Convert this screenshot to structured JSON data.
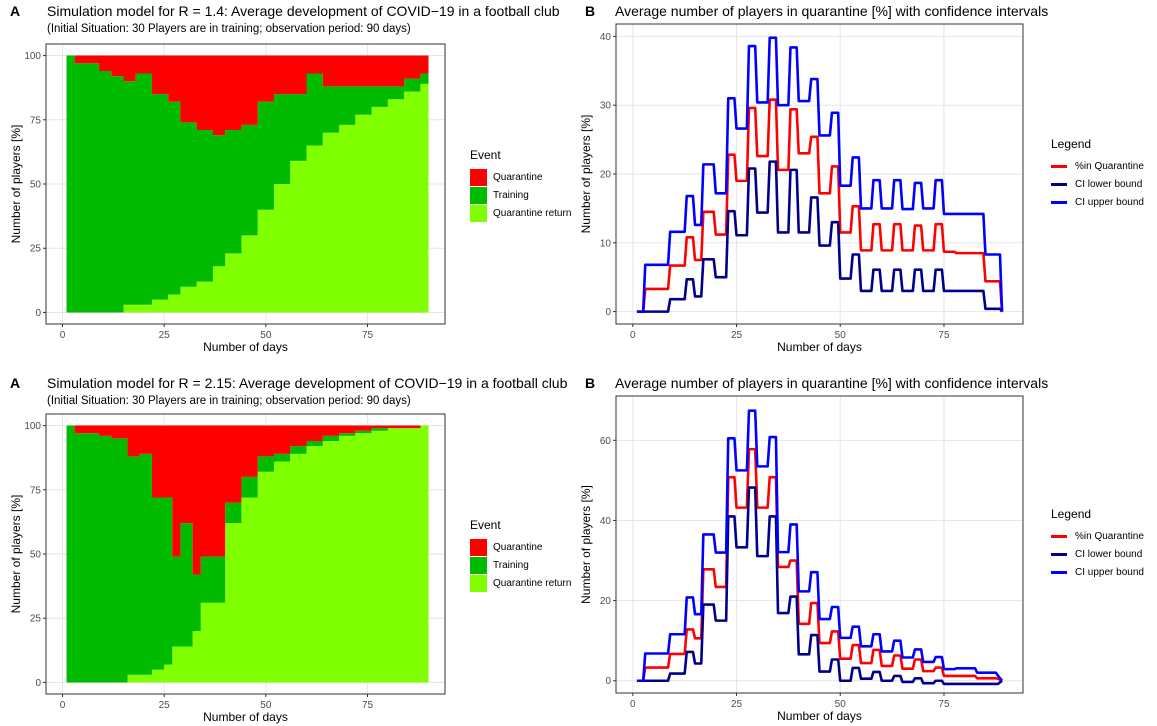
{
  "colors": {
    "quarantine": "#FF0000",
    "training": "#00BB00",
    "quarantine_return": "#7FFF00",
    "quarantine_line": "#FF0000",
    "ci_lower": "#00008B",
    "ci_upper": "#0000FF",
    "grid": "#E5E5E5",
    "axis": "#333333"
  },
  "panels": [
    {
      "letter": "A",
      "title": "Simulation model for R = 1.4: Average development of COVID−19 in a football club",
      "subtitle": "(Initial Situation: 30 Players are in training; observation period: 90 days)",
      "xlabel": "Number of days",
      "ylabel": "Number of players [%]",
      "legend": {
        "title": "Event",
        "items": [
          "Quarantine",
          "Training",
          "Quarantine return"
        ]
      }
    },
    {
      "letter": "B",
      "title": "Average number of players in quarantine [%] with confidence intervals",
      "xlabel": "Number of days",
      "ylabel": "Number of players [%]",
      "legend": {
        "title": "Legend",
        "items": [
          "%in Quarantine",
          "CI lower bound",
          "CI upper bound"
        ]
      }
    },
    {
      "letter": "A",
      "title": "Simulation model for R = 2.15: Average development of COVID−19 in a football club",
      "subtitle": "(Initial Situation: 30 Players are in training; observation period: 90 days)",
      "xlabel": "Number of days",
      "ylabel": "Number of players [%]",
      "legend": {
        "title": "Event",
        "items": [
          "Quarantine",
          "Training",
          "Quarantine return"
        ]
      }
    },
    {
      "letter": "B",
      "title": "Average number of players in quarantine [%] with confidence intervals",
      "xlabel": "Number of days",
      "ylabel": "Number of players [%]",
      "legend": {
        "title": "Legend",
        "items": [
          "%in Quarantine",
          "CI lower bound",
          "CI upper bound"
        ]
      }
    }
  ],
  "chart_data": [
    {
      "type": "area",
      "stacked": true,
      "xlim": [
        0,
        90
      ],
      "ylim": [
        0,
        100
      ],
      "xticks": [
        0,
        25,
        50,
        75
      ],
      "yticks": [
        0,
        25,
        50,
        75,
        100
      ],
      "grid": true,
      "legend_position": "right",
      "x": [
        1,
        3,
        9,
        12,
        15,
        18,
        22,
        26,
        29,
        33,
        37,
        40,
        44,
        48,
        52,
        56,
        60,
        64,
        68,
        72,
        76,
        80,
        84,
        88,
        90
      ],
      "series": [
        {
          "name": "Quarantine return",
          "values": [
            0,
            0,
            0,
            0,
            3,
            3,
            5,
            7,
            10,
            12,
            18,
            23,
            30,
            40,
            50,
            59,
            65,
            70,
            73,
            77,
            80,
            83,
            86,
            89,
            89
          ]
        },
        {
          "name": "Training",
          "values": [
            100,
            97,
            94,
            92,
            87,
            90,
            80,
            75,
            64,
            59,
            51,
            48,
            43,
            42,
            35,
            26,
            28,
            18,
            15,
            11,
            8,
            5,
            5,
            4,
            9
          ]
        },
        {
          "name": "Quarantine",
          "values": [
            0,
            3,
            6,
            8,
            10,
            7,
            15,
            18,
            26,
            29,
            31,
            29,
            27,
            18,
            15,
            15,
            7,
            12,
            12,
            12,
            12,
            12,
            9,
            7,
            2
          ]
        }
      ]
    },
    {
      "type": "line",
      "xlim": [
        0,
        90
      ],
      "ylim": [
        0,
        40
      ],
      "xticks": [
        0,
        25,
        50,
        75
      ],
      "yticks": [
        0,
        10,
        20,
        30,
        40
      ],
      "grid": true,
      "legend_position": "right",
      "x": [
        1,
        2.5,
        3,
        8.5,
        9,
        12.5,
        13,
        14.5,
        15,
        16.5,
        17,
        19.5,
        20,
        22.5,
        23,
        24.5,
        25,
        27.5,
        28,
        29.5,
        30,
        32.5,
        33,
        34.5,
        35,
        37.5,
        38,
        39.5,
        40,
        42.5,
        43,
        44.5,
        45,
        47.5,
        48,
        49.5,
        50,
        52.5,
        53,
        54.5,
        55,
        57.5,
        58,
        59.5,
        60,
        62.5,
        63,
        64.5,
        65,
        67.5,
        68,
        69.5,
        70,
        72.5,
        73,
        74.5,
        75,
        77.5,
        78,
        84.5,
        85,
        88.5,
        89
      ],
      "series": [
        {
          "name": "%in Quarantine",
          "values": [
            0,
            0,
            3.3,
            3.3,
            6.7,
            6.7,
            10.8,
            10.8,
            7.5,
            7.5,
            14.5,
            14.5,
            11.2,
            11.2,
            22.8,
            22.8,
            19,
            19,
            29.6,
            29.6,
            22.6,
            22.6,
            30.8,
            30.8,
            20.6,
            20.6,
            29.4,
            29.4,
            23,
            23,
            25.4,
            25.4,
            17.2,
            17.2,
            21.1,
            21.1,
            11.5,
            11.5,
            15.3,
            15.3,
            8.9,
            8.9,
            12.7,
            12.7,
            8.9,
            8.9,
            12.7,
            12.7,
            8.9,
            8.9,
            12.5,
            12.5,
            8.9,
            8.9,
            12.7,
            12.7,
            8.7,
            8.7,
            8.5,
            8.5,
            4.4,
            4.4,
            0
          ]
        },
        {
          "name": "CI lower bound",
          "values": [
            0,
            0,
            0,
            0,
            1.8,
            1.8,
            4.7,
            4.7,
            2.2,
            2.2,
            7.6,
            7.6,
            5,
            5,
            14.6,
            14.6,
            11.1,
            11.1,
            20.8,
            20.8,
            14.4,
            14.4,
            21.8,
            21.8,
            11.5,
            11.5,
            20.6,
            20.6,
            11.5,
            11.5,
            16.6,
            16.6,
            9.6,
            9.6,
            13,
            13,
            4.8,
            4.8,
            8.3,
            8.3,
            3,
            3,
            6.1,
            6.1,
            3,
            3,
            6.1,
            6.1,
            3,
            3,
            6.1,
            6.1,
            3,
            3,
            6.1,
            6.1,
            3,
            3,
            3,
            3,
            0.4,
            0.4,
            0
          ]
        },
        {
          "name": "CI upper bound",
          "values": [
            0,
            0,
            6.8,
            6.8,
            11.6,
            11.6,
            16.8,
            16.8,
            12.6,
            12.6,
            21.4,
            21.4,
            17.2,
            17.2,
            31,
            31,
            26.6,
            26.6,
            38.6,
            38.6,
            30.4,
            30.4,
            39.8,
            39.8,
            30,
            30,
            38.4,
            38.4,
            30.6,
            30.6,
            33.8,
            33.8,
            25.6,
            25.6,
            28.9,
            28.9,
            18.3,
            18.3,
            22.4,
            22.4,
            15,
            15,
            19.1,
            19.1,
            15,
            15,
            19.1,
            19.1,
            14.9,
            14.9,
            18.7,
            18.7,
            15,
            15,
            19.1,
            19.1,
            14.2,
            14.2,
            14.2,
            14.2,
            8.3,
            8.3,
            0
          ]
        }
      ]
    },
    {
      "type": "area",
      "stacked": true,
      "xlim": [
        0,
        90
      ],
      "ylim": [
        0,
        100
      ],
      "xticks": [
        0,
        25,
        50,
        75
      ],
      "yticks": [
        0,
        25,
        50,
        75,
        100
      ],
      "grid": true,
      "legend_position": "right",
      "x": [
        1,
        3,
        9,
        12,
        16,
        19,
        22,
        25,
        27,
        29,
        32,
        34,
        37,
        40,
        44,
        48,
        52,
        56,
        60,
        64,
        68,
        72,
        76,
        80,
        84,
        88,
        90
      ],
      "series": [
        {
          "name": "Quarantine return",
          "values": [
            0,
            0,
            0,
            0,
            3,
            3,
            5,
            7,
            14,
            14,
            20,
            31,
            31,
            62,
            72,
            82,
            86,
            89,
            92,
            94,
            96,
            97,
            98,
            99,
            99,
            100,
            100
          ]
        },
        {
          "name": "Training",
          "values": [
            100,
            97,
            96,
            95,
            85,
            86,
            67,
            65,
            35,
            48,
            22,
            18,
            18,
            8,
            8,
            6,
            3,
            3,
            2,
            2,
            1,
            1,
            1,
            0,
            0,
            0,
            0
          ]
        },
        {
          "name": "Quarantine",
          "values": [
            0,
            3,
            4,
            5,
            12,
            11,
            28,
            28,
            51,
            38,
            58,
            51,
            51,
            30,
            20,
            12,
            11,
            8,
            6,
            4,
            3,
            2,
            1,
            1,
            1,
            0,
            0
          ]
        }
      ]
    },
    {
      "type": "line",
      "xlim": [
        0,
        90
      ],
      "ylim": [
        0,
        68
      ],
      "xticks": [
        0,
        25,
        50,
        75
      ],
      "yticks": [
        0,
        20,
        40,
        60
      ],
      "grid": true,
      "legend_position": "right",
      "x": [
        1,
        2.5,
        3,
        8.5,
        9,
        12.5,
        13,
        14.5,
        15,
        16.5,
        17,
        19.5,
        20,
        22.5,
        23,
        24.5,
        25,
        27.5,
        28,
        29.5,
        30,
        32.5,
        33,
        34.5,
        35,
        37.5,
        38,
        39.5,
        40,
        42.5,
        43,
        44.5,
        45,
        47.5,
        48,
        49.5,
        50,
        52.5,
        53,
        54.5,
        55,
        57.5,
        58,
        59.5,
        60,
        62.5,
        63,
        64.5,
        65,
        67.5,
        68,
        69.5,
        70,
        72.5,
        73,
        74.5,
        75,
        77.5,
        78,
        82.5,
        83,
        87.5,
        88,
        89
      ],
      "series": [
        {
          "name": "%in Quarantine",
          "values": [
            0,
            0,
            3.3,
            3.3,
            6.7,
            6.7,
            12.8,
            12.8,
            10.6,
            10.6,
            27.8,
            27.8,
            23.4,
            23.4,
            50.8,
            50.8,
            43.2,
            43.2,
            57.8,
            57.8,
            43.2,
            43.2,
            50.8,
            50.8,
            28.4,
            28.4,
            30,
            30,
            14.2,
            14.2,
            19.4,
            19.4,
            9.4,
            9.4,
            12.3,
            12.3,
            5.5,
            5.5,
            8.9,
            8.9,
            4.4,
            4.4,
            7.7,
            7.7,
            3.7,
            3.7,
            6.3,
            6.3,
            3,
            3,
            5.3,
            5.3,
            2.4,
            2.4,
            3.3,
            3.3,
            1.2,
            1.2,
            1.2,
            1.2,
            0.6,
            0.6,
            0.5,
            0
          ]
        },
        {
          "name": "CI lower bound",
          "values": [
            0,
            0,
            0,
            0,
            1.8,
            1.8,
            7.2,
            7.2,
            4.3,
            4.3,
            19,
            19,
            15,
            15,
            41,
            41,
            33.3,
            33.3,
            48.2,
            48.2,
            31.1,
            31.1,
            41,
            41,
            16.9,
            16.9,
            21,
            21,
            6.6,
            6.6,
            11.4,
            11.4,
            2.3,
            2.3,
            5.3,
            5.3,
            0,
            0,
            3.2,
            3.2,
            0.5,
            0.5,
            2.2,
            2.2,
            0,
            0,
            1.2,
            1.2,
            -0.3,
            -0.3,
            0.6,
            0.6,
            -0.6,
            -0.6,
            0,
            0,
            -0.8,
            -0.8,
            -0.8,
            -0.8,
            -0.8,
            -0.8,
            -0.8,
            0
          ]
        },
        {
          "name": "CI upper bound",
          "values": [
            0,
            0,
            6.8,
            6.8,
            11.6,
            11.6,
            20.8,
            20.8,
            16.6,
            16.6,
            36.5,
            36.5,
            32,
            32,
            60.5,
            60.5,
            52.5,
            52.5,
            67.4,
            67.4,
            53.5,
            53.5,
            60.8,
            60.8,
            32.1,
            32.1,
            39,
            39,
            22.3,
            22.3,
            27.1,
            27.1,
            15.4,
            15.4,
            18.4,
            18.4,
            10.7,
            10.7,
            13.5,
            13.5,
            8.6,
            8.6,
            11.6,
            11.6,
            7.3,
            7.3,
            10,
            10,
            5.8,
            5.8,
            7.8,
            7.8,
            4.7,
            4.7,
            5.9,
            5.9,
            2.9,
            2.9,
            3.1,
            3.1,
            2,
            2,
            1.3,
            0
          ]
        }
      ]
    }
  ]
}
